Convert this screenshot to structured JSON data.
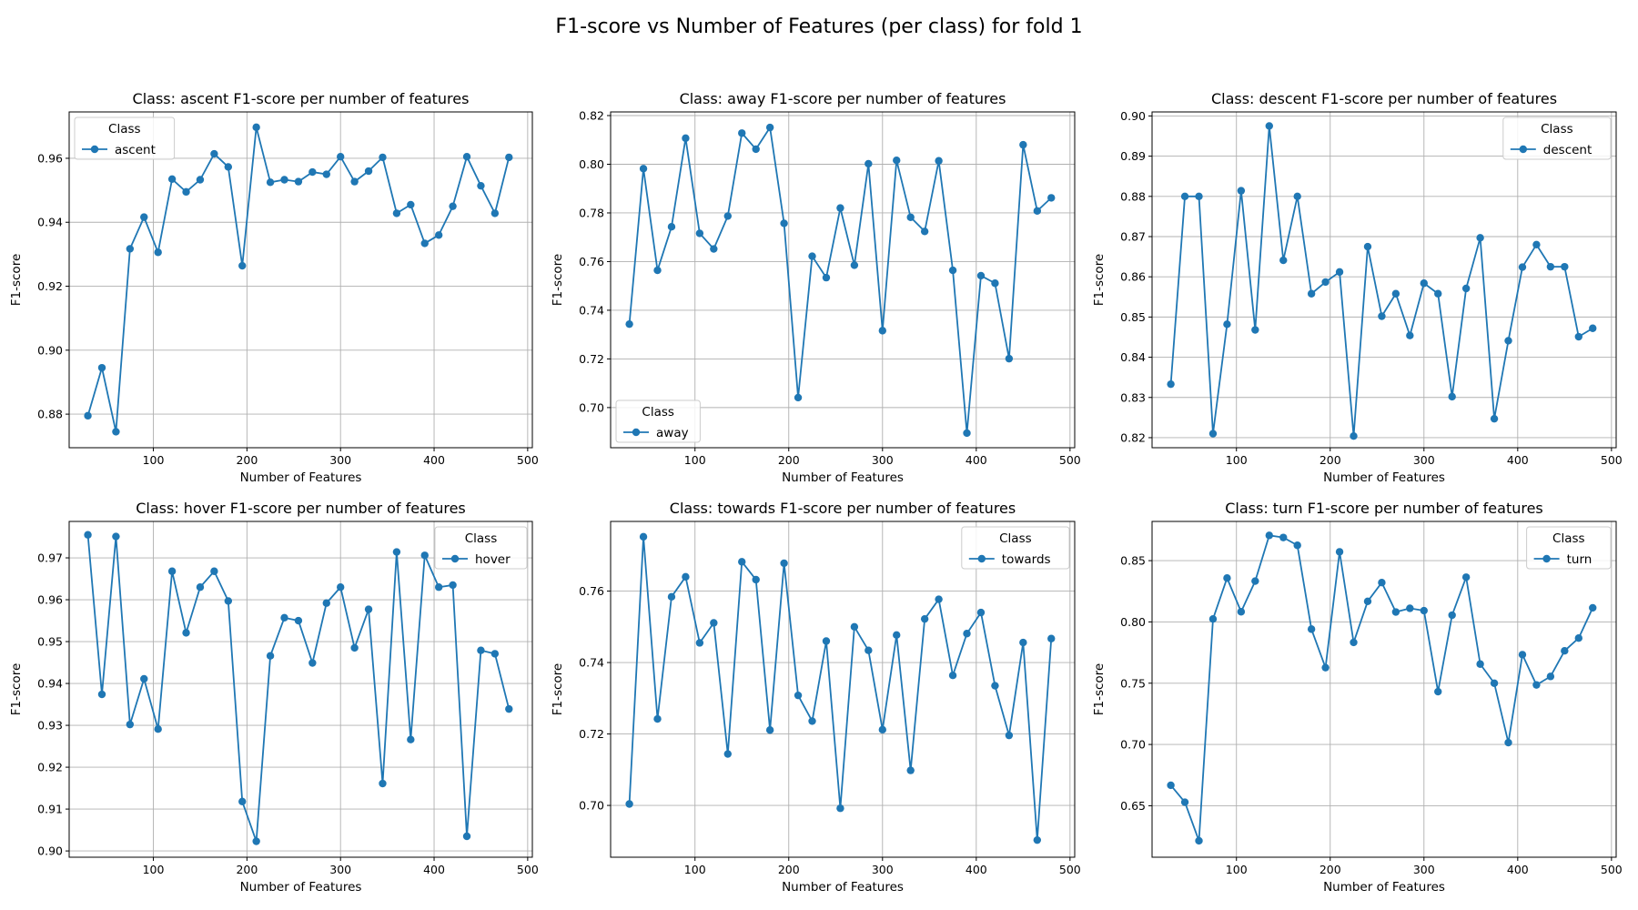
{
  "figure": {
    "title": "F1-score vs Number of Features (per class) for fold 1"
  },
  "colors": {
    "line": "#1f77b4",
    "grid": "#b0b0b0",
    "axes": "#000000"
  },
  "chart_data": [
    {
      "type": "line",
      "title": "Class: ascent F1-score per number of features",
      "xlabel": "Number of Features",
      "ylabel": "F1-score",
      "xlim": [
        10,
        505
      ],
      "ylim": [
        0.8695,
        0.9745
      ],
      "xticks": [
        100,
        200,
        300,
        400,
        500
      ],
      "yticks": [
        0.88,
        0.9,
        0.92,
        0.94,
        0.96
      ],
      "ytick_labels": [
        "0.88",
        "0.90",
        "0.92",
        "0.94",
        "0.96"
      ],
      "grid": true,
      "legend": {
        "title": "Class",
        "position": "upper-left"
      },
      "x": [
        30,
        45,
        60,
        75,
        90,
        105,
        120,
        135,
        150,
        165,
        180,
        195,
        210,
        225,
        240,
        255,
        270,
        285,
        300,
        315,
        330,
        345,
        360,
        375,
        390,
        405,
        420,
        435,
        450,
        465,
        480
      ],
      "series": [
        {
          "name": "ascent",
          "values": [
            0.8795,
            0.8945,
            0.8745,
            0.9317,
            0.9416,
            0.9306,
            0.9535,
            0.9495,
            0.9533,
            0.9614,
            0.9573,
            0.9264,
            0.9697,
            0.9525,
            0.9533,
            0.9527,
            0.9557,
            0.955,
            0.9605,
            0.9527,
            0.956,
            0.9603,
            0.9428,
            0.9455,
            0.9334,
            0.936,
            0.945,
            0.9605,
            0.9514,
            0.9428,
            0.9603
          ]
        }
      ]
    },
    {
      "type": "line",
      "title": "Class: away F1-score per number of features",
      "xlabel": "Number of Features",
      "ylabel": "F1-score",
      "xlim": [
        10,
        505
      ],
      "ylim": [
        0.6835,
        0.8215
      ],
      "xticks": [
        100,
        200,
        300,
        400,
        500
      ],
      "yticks": [
        0.7,
        0.72,
        0.74,
        0.76,
        0.78,
        0.8,
        0.82
      ],
      "ytick_labels": [
        "0.70",
        "0.72",
        "0.74",
        "0.76",
        "0.78",
        "0.80",
        "0.82"
      ],
      "grid": true,
      "legend": {
        "title": "Class",
        "position": "lower-left"
      },
      "x": [
        30,
        45,
        60,
        75,
        90,
        105,
        120,
        135,
        150,
        165,
        180,
        195,
        210,
        225,
        240,
        255,
        270,
        285,
        300,
        315,
        330,
        345,
        360,
        375,
        390,
        405,
        420,
        435,
        450,
        465,
        480
      ],
      "series": [
        {
          "name": "away",
          "values": [
            0.7343,
            0.7982,
            0.7564,
            0.7743,
            0.8107,
            0.7716,
            0.7652,
            0.7787,
            0.8128,
            0.8062,
            0.8151,
            0.7757,
            0.7041,
            0.7622,
            0.7534,
            0.782,
            0.7585,
            0.8002,
            0.7316,
            0.8016,
            0.7782,
            0.7724,
            0.8014,
            0.7564,
            0.6895,
            0.7542,
            0.7511,
            0.7201,
            0.808,
            0.7808,
            0.7862
          ]
        }
      ]
    },
    {
      "type": "line",
      "title": "Class: descent F1-score per number of features",
      "xlabel": "Number of Features",
      "ylabel": "F1-score",
      "xlim": [
        10,
        505
      ],
      "ylim": [
        0.8175,
        0.901
      ],
      "xticks": [
        100,
        200,
        300,
        400,
        500
      ],
      "yticks": [
        0.82,
        0.83,
        0.84,
        0.85,
        0.86,
        0.87,
        0.88,
        0.89,
        0.9
      ],
      "ytick_labels": [
        "0.82",
        "0.83",
        "0.84",
        "0.85",
        "0.86",
        "0.87",
        "0.88",
        "0.89",
        "0.90"
      ],
      "grid": true,
      "legend": {
        "title": "Class",
        "position": "upper-right"
      },
      "x": [
        30,
        45,
        60,
        75,
        90,
        105,
        120,
        135,
        150,
        165,
        180,
        195,
        210,
        225,
        240,
        255,
        270,
        285,
        300,
        315,
        330,
        345,
        360,
        375,
        390,
        405,
        420,
        435,
        450,
        465,
        480
      ],
      "series": [
        {
          "name": "descent",
          "values": [
            0.8333,
            0.88,
            0.88,
            0.821,
            0.8482,
            0.8814,
            0.8468,
            0.8975,
            0.8641,
            0.88,
            0.8558,
            0.8587,
            0.8612,
            0.8204,
            0.8675,
            0.8502,
            0.8558,
            0.8454,
            0.8584,
            0.8558,
            0.8302,
            0.8571,
            0.8697,
            0.8247,
            0.8441,
            0.8624,
            0.868,
            0.8625,
            0.8625,
            0.8451,
            0.8472
          ]
        }
      ]
    },
    {
      "type": "line",
      "title": "Class: hover F1-score per number of features",
      "xlabel": "Number of Features",
      "ylabel": "F1-score",
      "xlim": [
        10,
        505
      ],
      "ylim": [
        0.8985,
        0.9787
      ],
      "xticks": [
        100,
        200,
        300,
        400,
        500
      ],
      "yticks": [
        0.9,
        0.91,
        0.92,
        0.93,
        0.94,
        0.95,
        0.96,
        0.97
      ],
      "ytick_labels": [
        "0.90",
        "0.91",
        "0.92",
        "0.93",
        "0.94",
        "0.95",
        "0.96",
        "0.97"
      ],
      "grid": true,
      "legend": {
        "title": "Class",
        "position": "upper-right"
      },
      "x": [
        30,
        45,
        60,
        75,
        90,
        105,
        120,
        135,
        150,
        165,
        180,
        195,
        210,
        225,
        240,
        255,
        270,
        285,
        300,
        315,
        330,
        345,
        360,
        375,
        390,
        405,
        420,
        435,
        450,
        465,
        480
      ],
      "series": [
        {
          "name": "hover",
          "values": [
            0.9755,
            0.9374,
            0.9751,
            0.9302,
            0.9411,
            0.9291,
            0.9668,
            0.9521,
            0.963,
            0.9668,
            0.9597,
            0.9118,
            0.9023,
            0.9466,
            0.9557,
            0.955,
            0.9449,
            0.9592,
            0.963,
            0.9485,
            0.9577,
            0.9161,
            0.9714,
            0.9266,
            0.9706,
            0.963,
            0.9635,
            0.9035,
            0.9479,
            0.9471,
            0.9339
          ]
        }
      ]
    },
    {
      "type": "line",
      "title": "Class: towards F1-score per number of features",
      "xlabel": "Number of Features",
      "ylabel": "F1-score",
      "xlim": [
        10,
        505
      ],
      "ylim": [
        0.6855,
        0.7795
      ],
      "xticks": [
        100,
        200,
        300,
        400,
        500
      ],
      "yticks": [
        0.7,
        0.72,
        0.74,
        0.76
      ],
      "ytick_labels": [
        "0.70",
        "0.72",
        "0.74",
        "0.76"
      ],
      "grid": true,
      "legend": {
        "title": "Class",
        "position": "upper-right"
      },
      "x": [
        30,
        45,
        60,
        75,
        90,
        105,
        120,
        135,
        150,
        165,
        180,
        195,
        210,
        225,
        240,
        255,
        270,
        285,
        300,
        315,
        330,
        345,
        360,
        375,
        390,
        405,
        420,
        435,
        450,
        465,
        480
      ],
      "series": [
        {
          "name": "towards",
          "values": [
            0.7004,
            0.7752,
            0.7242,
            0.7584,
            0.764,
            0.7455,
            0.7511,
            0.7144,
            0.7682,
            0.7632,
            0.7211,
            0.7678,
            0.7308,
            0.7236,
            0.746,
            0.6992,
            0.75,
            0.7434,
            0.7212,
            0.7477,
            0.7098,
            0.7522,
            0.7577,
            0.7364,
            0.7481,
            0.754,
            0.7335,
            0.7196,
            0.7456,
            0.6903,
            0.7467
          ]
        }
      ]
    },
    {
      "type": "line",
      "title": "Class: turn F1-score per number of features",
      "xlabel": "Number of Features",
      "ylabel": "F1-score",
      "xlim": [
        10,
        505
      ],
      "ylim": [
        0.608,
        0.882
      ],
      "xticks": [
        100,
        200,
        300,
        400,
        500
      ],
      "yticks": [
        0.65,
        0.7,
        0.75,
        0.8,
        0.85
      ],
      "ytick_labels": [
        "0.65",
        "0.70",
        "0.75",
        "0.80",
        "0.85"
      ],
      "grid": true,
      "legend": {
        "title": "Class",
        "position": "upper-right"
      },
      "x": [
        30,
        45,
        60,
        75,
        90,
        105,
        120,
        135,
        150,
        165,
        180,
        195,
        210,
        225,
        240,
        255,
        270,
        285,
        300,
        315,
        330,
        345,
        360,
        375,
        390,
        405,
        420,
        435,
        450,
        465,
        480
      ],
      "series": [
        {
          "name": "turn",
          "values": [
            0.6667,
            0.6529,
            0.6214,
            0.8024,
            0.8358,
            0.8083,
            0.8333,
            0.8706,
            0.8689,
            0.8625,
            0.7941,
            0.7627,
            0.8572,
            0.7833,
            0.8168,
            0.8321,
            0.8081,
            0.8111,
            0.8092,
            0.7431,
            0.8055,
            0.8365,
            0.7656,
            0.75,
            0.7015,
            0.7733,
            0.7486,
            0.7555,
            0.7764,
            0.7868,
            0.8115
          ]
        }
      ]
    }
  ]
}
